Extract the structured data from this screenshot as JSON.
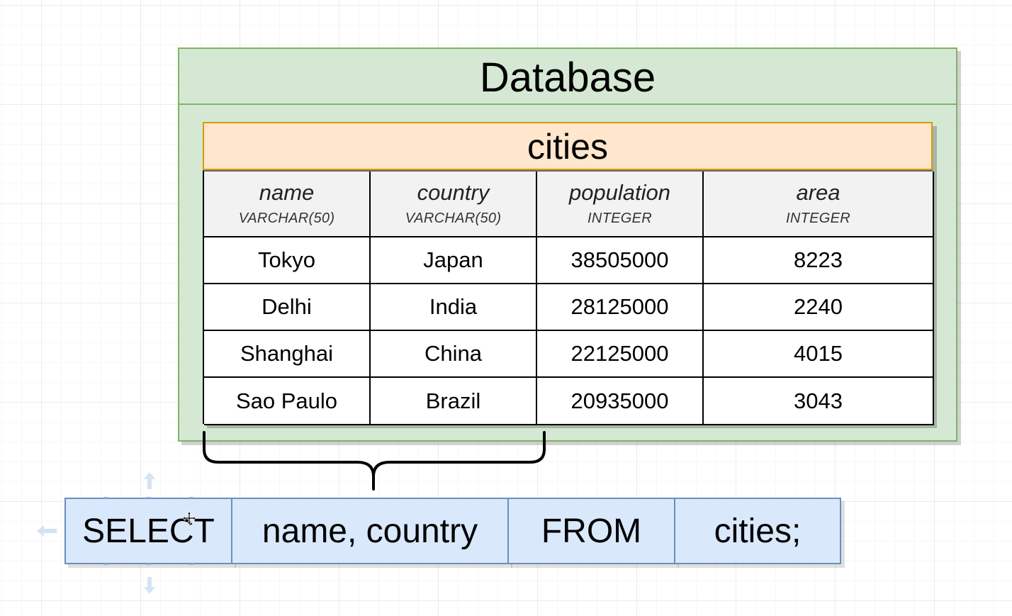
{
  "database": {
    "title": "Database"
  },
  "table": {
    "name": "cities",
    "columns": [
      {
        "name": "name",
        "type": "VARCHAR(50)"
      },
      {
        "name": "country",
        "type": "VARCHAR(50)"
      },
      {
        "name": "population",
        "type": "INTEGER"
      },
      {
        "name": "area",
        "type": "INTEGER"
      }
    ],
    "rows": [
      [
        "Tokyo",
        "Japan",
        "38505000",
        "8223"
      ],
      [
        "Delhi",
        "India",
        "28125000",
        "2240"
      ],
      [
        "Shanghai",
        "China",
        "22125000",
        "4015"
      ],
      [
        "Sao Paulo",
        "Brazil",
        "20935000",
        "3043"
      ]
    ]
  },
  "query": {
    "keyword_select": "SELECT",
    "columns": "name, country",
    "keyword_from": "FROM",
    "table": "cities;"
  },
  "colors": {
    "database_fill": "#d5e8d4",
    "database_stroke": "#82b366",
    "table_title_fill": "#ffe6cc",
    "table_title_stroke": "#d79b00",
    "header_fill": "#f2f2f2",
    "query_fill": "#dae8fc",
    "query_stroke": "#6c8ebf"
  },
  "icons": {
    "brace": "curly-brace-icon",
    "cursor": "move-cursor-icon",
    "arrows": [
      "arrow-up-icon",
      "arrow-left-icon",
      "arrow-down-icon"
    ]
  }
}
